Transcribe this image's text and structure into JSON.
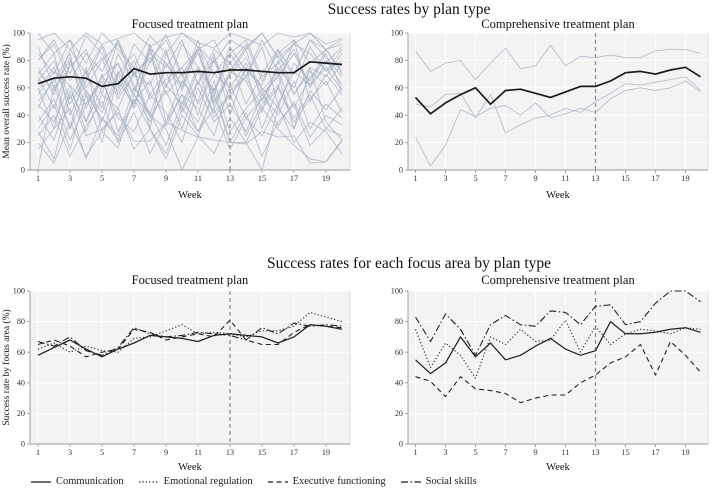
{
  "figure": {
    "section1_title": "Success rates by plan type",
    "section2_title": "Success rates for each focus area by plan type",
    "xlabel": "Week",
    "row1_ylabel": "Mean overall success rate (%)",
    "row2_ylabel": "Success rate by focus area (%)",
    "legend": [
      {
        "label": "Communication",
        "style": "solid"
      },
      {
        "label": "Emotional regulation",
        "style": "dotted"
      },
      {
        "label": "Executive functioning",
        "style": "dashed"
      },
      {
        "label": "Social skills",
        "style": "dashdot"
      }
    ],
    "colors": {
      "individual_line": "#a6b3c4",
      "mean_line": "#1a1a1a",
      "focus_line": "#222222",
      "panel_bg": "#f3f3f3",
      "grid": "#ffffff",
      "panel_border": "#d6d6d6",
      "axis": "#999999",
      "vline": "#888888",
      "tick_text": "#333333"
    }
  },
  "chart_data": [
    {
      "type": "line",
      "panel": "top-left",
      "title": "Focused treatment plan",
      "ylabel": "Mean overall success rate (%)",
      "xlabel": "Week",
      "x_ticks": [
        1,
        3,
        5,
        7,
        9,
        11,
        13,
        15,
        17,
        19
      ],
      "y_ticks": [
        0,
        20,
        40,
        60,
        80,
        100
      ],
      "ylim": [
        0,
        100
      ],
      "xlim": [
        1,
        20
      ],
      "vline_x": 13,
      "series": [
        {
          "name": "individual-1",
          "style": "individual",
          "values": [
            95,
            100,
            88,
            100,
            92,
            96,
            100,
            90,
            97,
            100,
            93,
            89,
            100,
            96,
            91,
            100,
            97,
            100,
            92,
            96
          ]
        },
        {
          "name": "individual-2",
          "style": "individual",
          "values": [
            80,
            95,
            70,
            98,
            85,
            60,
            92,
            78,
            99,
            70,
            88,
            95,
            72,
            90,
            100,
            82,
            70,
            95,
            88,
            92
          ]
        },
        {
          "name": "individual-3",
          "style": "individual",
          "values": [
            20,
            5,
            35,
            10,
            28,
            45,
            15,
            30,
            8,
            40,
            25,
            12,
            38,
            20,
            45,
            30,
            18,
            8,
            6,
            22
          ]
        },
        {
          "name": "individual-4",
          "style": "individual",
          "values": [
            60,
            30,
            80,
            55,
            20,
            70,
            45,
            90,
            35,
            65,
            50,
            85,
            40,
            75,
            30,
            60,
            95,
            50,
            70,
            55
          ]
        },
        {
          "name": "individual-5",
          "style": "individual",
          "values": [
            70,
            85,
            40,
            65,
            90,
            55,
            75,
            30,
            85,
            60,
            95,
            45,
            70,
            88,
            50,
            75,
            60,
            90,
            72,
            80
          ]
        },
        {
          "name": "individual-6",
          "style": "individual",
          "values": [
            50,
            65,
            85,
            35,
            60,
            78,
            45,
            88,
            55,
            70,
            40,
            82,
            58,
            68,
            90,
            48,
            72,
            62,
            85,
            58
          ]
        },
        {
          "name": "individual-7",
          "style": "individual",
          "values": [
            30,
            48,
            15,
            55,
            38,
            25,
            60,
            42,
            18,
            50,
            35,
            65,
            28,
            45,
            58,
            32,
            50,
            24,
            40,
            33
          ]
        },
        {
          "name": "individual-8",
          "style": "individual",
          "values": [
            85,
            70,
            95,
            60,
            80,
            92,
            68,
            85,
            75,
            95,
            62,
            88,
            78,
            92,
            65,
            85,
            95,
            78,
            88,
            70
          ]
        },
        {
          "name": "individual-9",
          "style": "individual",
          "values": [
            40,
            22,
            58,
            35,
            70,
            28,
            50,
            65,
            32,
            55,
            45,
            25,
            62,
            38,
            52,
            70,
            30,
            58,
            44,
            60
          ]
        },
        {
          "name": "individual-10",
          "style": "individual",
          "values": [
            65,
            80,
            52,
            72,
            45,
            85,
            62,
            40,
            78,
            58,
            88,
            50,
            72,
            65,
            42,
            80,
            55,
            75,
            68,
            85
          ]
        },
        {
          "name": "individual-11",
          "style": "individual",
          "values": [
            90,
            60,
            75,
            88,
            55,
            95,
            70,
            82,
            60,
            92,
            75,
            58,
            85,
            68,
            95,
            72,
            88,
            60,
            78,
            90
          ]
        },
        {
          "name": "individual-12",
          "style": "individual",
          "values": [
            25,
            40,
            10,
            32,
            50,
            20,
            42,
            12,
            35,
            55,
            28,
            45,
            15,
            38,
            25,
            48,
            20,
            35,
            28,
            12
          ]
        },
        {
          "name": "individual-13",
          "style": "individual",
          "values": [
            55,
            72,
            62,
            48,
            68,
            58,
            80,
            52,
            66,
            75,
            48,
            70,
            60,
            78,
            55,
            68,
            85,
            62,
            75,
            58
          ]
        },
        {
          "name": "individual-14",
          "style": "individual",
          "values": [
            75,
            55,
            88,
            70,
            92,
            65,
            48,
            80,
            95,
            68,
            85,
            55,
            90,
            72,
            62,
            88,
            70,
            95,
            82,
            68
          ]
        },
        {
          "name": "individual-15",
          "style": "individual",
          "values": [
            45,
            68,
            30,
            58,
            42,
            72,
            55,
            35,
            62,
            48,
            75,
            38,
            55,
            68,
            45,
            60,
            35,
            52,
            65,
            42
          ]
        },
        {
          "name": "individual-16",
          "style": "individual",
          "values": [
            100,
            85,
            95,
            78,
            100,
            88,
            75,
            98,
            85,
            100,
            90,
            78,
            95,
            88,
            100,
            82,
            92,
            100,
            88,
            95
          ]
        },
        {
          "name": "individual-17",
          "style": "individual",
          "values": [
            35,
            52,
            22,
            48,
            65,
            38,
            28,
            55,
            42,
            20,
            60,
            35,
            48,
            28,
            55,
            40,
            65,
            30,
            48,
            38
          ]
        },
        {
          "name": "individual-18",
          "style": "individual",
          "values": [
            68,
            45,
            78,
            58,
            35,
            70,
            85,
            55,
            72,
            42,
            65,
            80,
            52,
            75,
            60,
            45,
            78,
            65,
            88,
            72
          ]
        },
        {
          "name": "individual-19",
          "style": "individual",
          "values": [
            80,
            92,
            65,
            85,
            72,
            95,
            58,
            88,
            78,
            62,
            90,
            70,
            85,
            95,
            68,
            78,
            92,
            85,
            72,
            88
          ]
        },
        {
          "name": "individual-20",
          "style": "individual",
          "values": [
            15,
            30,
            45,
            8,
            38,
            22,
            52,
            30,
            12,
            45,
            28,
            55,
            20,
            42,
            10,
            35,
            48,
            18,
            30,
            25
          ]
        },
        {
          "name": "individual-21",
          "style": "individual",
          "values": [
            58,
            75,
            48,
            68,
            82,
            52,
            70,
            62,
            88,
            45,
            72,
            58,
            80,
            48,
            70,
            88,
            55,
            72,
            62,
            78
          ]
        },
        {
          "name": "individual-22",
          "style": "individual",
          "values": [
            72,
            58,
            82,
            45,
            68,
            78,
            55,
            92,
            62,
            75,
            88,
            48,
            70,
            82,
            58,
            72,
            45,
            68,
            80,
            62
          ]
        },
        {
          "name": "individual-23",
          "style": "individual",
          "values": [
            48,
            35,
            62,
            28,
            55,
            45,
            72,
            38,
            58,
            30,
            65,
            42,
            55,
            25,
            48,
            62,
            38,
            55,
            30,
            45
          ]
        },
        {
          "name": "individual-24",
          "style": "individual",
          "values": [
            0,
            62,
            30,
            75,
            28,
            16,
            55,
            40,
            30,
            0,
            24,
            60,
            20,
            20,
            0,
            45,
            30,
            75,
            35,
            22
          ]
        },
        {
          "name": "individual-25",
          "style": "individual",
          "values": [
            28,
            8,
            55,
            25,
            30,
            42,
            21,
            21,
            35,
            29,
            24,
            22,
            20,
            19,
            28,
            24,
            25,
            5,
            6,
            21
          ]
        },
        {
          "name": "Mean",
          "style": "mean",
          "values": [
            63,
            67,
            68,
            67,
            61,
            63,
            74,
            70,
            71,
            71,
            72,
            71,
            73,
            73,
            72,
            71,
            71,
            79,
            78,
            77
          ]
        }
      ]
    },
    {
      "type": "line",
      "panel": "top-right",
      "title": "Comprehensive treatment plan",
      "ylabel": null,
      "xlabel": "Week",
      "x_ticks": [
        1,
        3,
        5,
        7,
        9,
        11,
        13,
        15,
        17,
        19
      ],
      "y_ticks": [
        0,
        20,
        40,
        60,
        80,
        100
      ],
      "ylim": [
        0,
        100
      ],
      "xlim": [
        1,
        20
      ],
      "vline_x": 13,
      "series": [
        {
          "name": "individual-1",
          "style": "individual",
          "values": [
            87,
            72,
            78,
            80,
            66,
            78,
            89,
            74,
            76,
            91,
            76,
            83,
            82,
            84,
            82,
            82,
            87,
            88,
            88,
            85
          ]
        },
        {
          "name": "individual-2",
          "style": "individual",
          "values": [
            48,
            46,
            55,
            56,
            38,
            55,
            27,
            33,
            38,
            40,
            45,
            42,
            50,
            56,
            63,
            62,
            64,
            66,
            68,
            58
          ]
        },
        {
          "name": "individual-3",
          "style": "individual",
          "values": [
            24,
            3,
            18,
            44,
            39,
            45,
            47,
            40,
            49,
            38,
            41,
            45,
            42,
            52,
            58,
            60,
            58,
            60,
            65,
            57
          ]
        },
        {
          "name": "Mean",
          "style": "mean",
          "values": [
            53,
            41,
            49,
            55,
            60,
            48,
            58,
            59,
            56,
            53,
            57,
            61,
            61,
            65,
            71,
            72,
            70,
            73,
            75,
            68
          ]
        }
      ]
    },
    {
      "type": "line",
      "panel": "bottom-left",
      "title": "Focused treatment plan",
      "ylabel": "Success rate by focus area (%)",
      "xlabel": "Week",
      "x_ticks": [
        1,
        3,
        5,
        7,
        9,
        11,
        13,
        15,
        17,
        19
      ],
      "y_ticks": [
        0,
        20,
        40,
        60,
        80,
        100
      ],
      "ylim": [
        0,
        100
      ],
      "xlim": [
        1,
        20
      ],
      "vline_x": 13,
      "series": [
        {
          "name": "Communication",
          "style": "solid",
          "values": [
            58,
            63,
            68,
            62,
            57,
            62,
            66,
            71,
            70,
            69,
            67,
            71,
            72,
            71,
            70,
            66,
            70,
            78,
            77,
            75
          ]
        },
        {
          "name": "Emotional regulation",
          "style": "dotted",
          "values": [
            62,
            66,
            60,
            64,
            61,
            60,
            69,
            70,
            74,
            78,
            72,
            73,
            72,
            70,
            74,
            74,
            77,
            86,
            83,
            80
          ]
        },
        {
          "name": "Executive functioning",
          "style": "dashed",
          "values": [
            65,
            68,
            64,
            57,
            60,
            62,
            75,
            73,
            68,
            70,
            72,
            70,
            81,
            68,
            65,
            65,
            73,
            78,
            77,
            76
          ]
        },
        {
          "name": "Social skills",
          "style": "dashdot",
          "values": [
            67,
            64,
            70,
            61,
            58,
            63,
            76,
            72,
            70,
            71,
            73,
            72,
            71,
            68,
            76,
            72,
            79,
            77,
            78,
            77
          ]
        }
      ]
    },
    {
      "type": "line",
      "panel": "bottom-right",
      "title": "Comprehensive treatment plan",
      "ylabel": null,
      "xlabel": "Week",
      "x_ticks": [
        1,
        3,
        5,
        7,
        9,
        11,
        13,
        15,
        17,
        19
      ],
      "y_ticks": [
        0,
        20,
        40,
        60,
        80,
        100
      ],
      "ylim": [
        0,
        100
      ],
      "xlim": [
        1,
        20
      ],
      "vline_x": 13,
      "series": [
        {
          "name": "Communication",
          "style": "solid",
          "values": [
            55,
            46,
            53,
            70,
            57,
            66,
            55,
            58,
            64,
            69,
            62,
            58,
            61,
            80,
            72,
            72,
            73,
            75,
            76,
            73
          ]
        },
        {
          "name": "Emotional regulation",
          "style": "dotted",
          "values": [
            75,
            50,
            66,
            58,
            43,
            70,
            65,
            75,
            67,
            68,
            81,
            60,
            77,
            65,
            72,
            75,
            74,
            72,
            76,
            75
          ]
        },
        {
          "name": "Executive functioning",
          "style": "dashed",
          "values": [
            44,
            41,
            31,
            44,
            36,
            35,
            33,
            27,
            30,
            32,
            32,
            40,
            45,
            53,
            57,
            65,
            45,
            67,
            58,
            47
          ]
        },
        {
          "name": "Social skills",
          "style": "dashdot",
          "values": [
            83,
            67,
            85,
            75,
            58,
            78,
            84,
            78,
            77,
            87,
            86,
            78,
            90,
            91,
            78,
            80,
            92,
            100,
            100,
            93
          ]
        }
      ]
    }
  ]
}
